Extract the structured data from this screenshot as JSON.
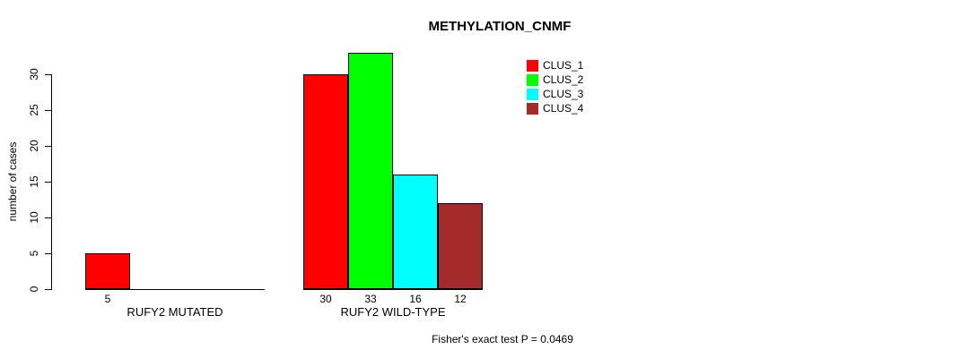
{
  "chart_data": {
    "type": "bar",
    "title": "METHYLATION_CNMF",
    "ylabel": "number of cases",
    "xlabel": "",
    "ylim": [
      0,
      33
    ],
    "yticks": [
      0,
      5,
      10,
      15,
      20,
      25,
      30
    ],
    "grid": false,
    "background": "#FFFFFF",
    "bar_border_color": "#000000",
    "legend": {
      "position": "top-right",
      "entries": [
        {
          "label": "CLUS_1",
          "color": "#FF0000"
        },
        {
          "label": "CLUS_2",
          "color": "#00FF00"
        },
        {
          "label": "CLUS_3",
          "color": "#00FFFF"
        },
        {
          "label": "CLUS_4",
          "color": "#A52A2A"
        }
      ]
    },
    "groups": [
      {
        "label": "RUFY2 MUTATED",
        "slots": 4,
        "bars": [
          {
            "cluster": "CLUS_1",
            "value": 5,
            "value_label": "5",
            "color": "#FF0000",
            "slot": 0
          }
        ]
      },
      {
        "label": "RUFY2 WILD-TYPE",
        "slots": 4,
        "bars": [
          {
            "cluster": "CLUS_1",
            "value": 30,
            "value_label": "30",
            "color": "#FF0000",
            "slot": 0
          },
          {
            "cluster": "CLUS_2",
            "value": 33,
            "value_label": "33",
            "color": "#00FF00",
            "slot": 1
          },
          {
            "cluster": "CLUS_3",
            "value": 16,
            "value_label": "16",
            "color": "#00FFFF",
            "slot": 2
          },
          {
            "cluster": "CLUS_4",
            "value": 12,
            "value_label": "12",
            "color": "#A52A2A",
            "slot": 3
          }
        ]
      }
    ],
    "annotation": "Fisher's exact test P = 0.0469"
  }
}
